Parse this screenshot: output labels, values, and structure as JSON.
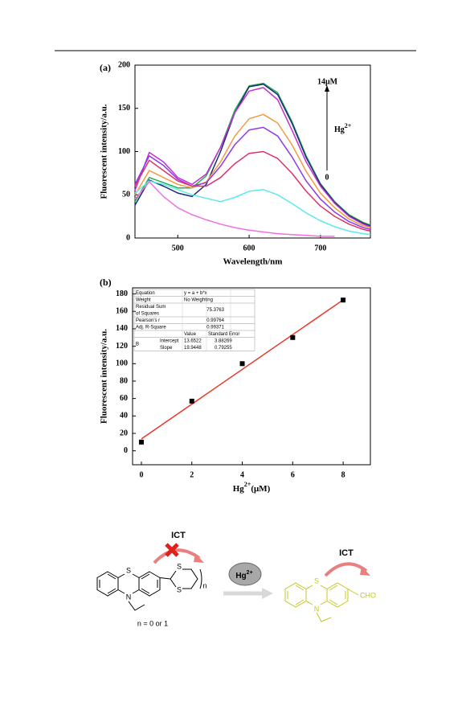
{
  "chart_data": [
    {
      "type": "line",
      "title": "(a)",
      "x_label": "Wavelength/nm",
      "y_label": "Fluorescent intensity/a.u.",
      "x": [
        440,
        460,
        480,
        500,
        520,
        540,
        560,
        580,
        600,
        620,
        640,
        660,
        680,
        700,
        720,
        740,
        760,
        770
      ],
      "series": [
        {
          "color": "#22b14c",
          "values": [
            42,
            70,
            64,
            58,
            58,
            72,
            105,
            148,
            176,
            179,
            168,
            135,
            95,
            63,
            42,
            27,
            18,
            15
          ]
        },
        {
          "color": "#1c2a7a",
          "values": [
            38,
            67,
            60,
            52,
            48,
            62,
            100,
            145,
            175,
            178,
            166,
            133,
            93,
            62,
            41,
            26,
            17,
            14
          ]
        },
        {
          "color": "#c030d0",
          "values": [
            55,
            99,
            88,
            70,
            62,
            74,
            105,
            145,
            170,
            174,
            160,
            125,
            88,
            60,
            40,
            25,
            16,
            13
          ]
        },
        {
          "color": "#f59a3c",
          "values": [
            50,
            78,
            70,
            62,
            58,
            65,
            88,
            118,
            138,
            143,
            133,
            108,
            77,
            52,
            35,
            22,
            14,
            12
          ]
        },
        {
          "color": "#8a3af0",
          "values": [
            62,
            95,
            84,
            68,
            60,
            64,
            83,
            108,
            125,
            128,
            118,
            94,
            66,
            45,
            30,
            19,
            12,
            10
          ]
        },
        {
          "color": "#e0306a",
          "values": [
            60,
            90,
            78,
            66,
            60,
            60,
            70,
            86,
            98,
            100,
            92,
            75,
            54,
            37,
            25,
            16,
            10,
            8
          ]
        },
        {
          "color": "#5ee8f0",
          "values": [
            52,
            66,
            62,
            56,
            50,
            46,
            42,
            47,
            54,
            56,
            50,
            40,
            29,
            20,
            13,
            8,
            5,
            4
          ]
        },
        {
          "color": "#f070e0",
          "values": [
            45,
            65,
            48,
            35,
            27,
            21,
            16,
            12,
            9,
            7,
            5,
            4,
            3,
            2,
            2,
            null,
            null,
            null
          ]
        }
      ],
      "xlim": [
        440,
        770
      ],
      "ylim": [
        0,
        200
      ],
      "xticks": [
        500,
        600,
        700
      ],
      "yticks": [
        0,
        50,
        100,
        150,
        200
      ],
      "annotations": {
        "top": "14μM",
        "ion": {
          "base": "Hg",
          "sup": "2+"
        },
        "bottom": "0"
      }
    },
    {
      "type": "scatter",
      "title": "(b)",
      "x_label": {
        "base": "Hg",
        "sup": "2+",
        "rest": "(μM)"
      },
      "y_label": "Fluorescent intensity/a.u.",
      "x": [
        0,
        2,
        4,
        6,
        8
      ],
      "values": [
        10,
        57,
        100,
        130,
        173
      ],
      "point_color": "#000000",
      "fit_color": "#e8372a",
      "xlim": [
        -0.35,
        9.08
      ],
      "ylim": [
        -16,
        187
      ],
      "xticks": [
        0,
        2,
        4,
        6,
        8
      ],
      "yticks": [
        0,
        20,
        40,
        60,
        80,
        100,
        120,
        140,
        160,
        180
      ],
      "fit_table": {
        "stats": [
          {
            "label": [
              "Equation"
            ],
            "value": "y = a + b*x"
          },
          {
            "label": [
              "Weight"
            ],
            "value": "No Weighting"
          },
          {
            "label": [
              "Residual Sum",
              "of Squares"
            ],
            "value": 75.3763
          },
          {
            "label": [
              "Pearson's r"
            ],
            "value": 0.99764
          },
          {
            "label": [
              "Adj. R-Square"
            ],
            "value": 0.99371
          }
        ],
        "header": [
          "Value",
          "Standard Error"
        ],
        "group": "B",
        "params": [
          {
            "name": "Intercept",
            "value": 13.6522,
            "error": 3.88269
          },
          {
            "name": "Slope",
            "value": 19.9448,
            "error": 0.79255
          }
        ]
      }
    }
  ],
  "scheme": {
    "left": {
      "ict": "ICT",
      "s_core": "S",
      "n_core": "N",
      "s_ring1": "S",
      "s_ring2": "S",
      "n_index": "n",
      "note": "n = 0 or 1"
    },
    "reagent": {
      "base": "Hg",
      "sup": "2+"
    },
    "right": {
      "ict": "ICT",
      "s_core": "S",
      "n_core": "N",
      "group": "CHO"
    }
  }
}
